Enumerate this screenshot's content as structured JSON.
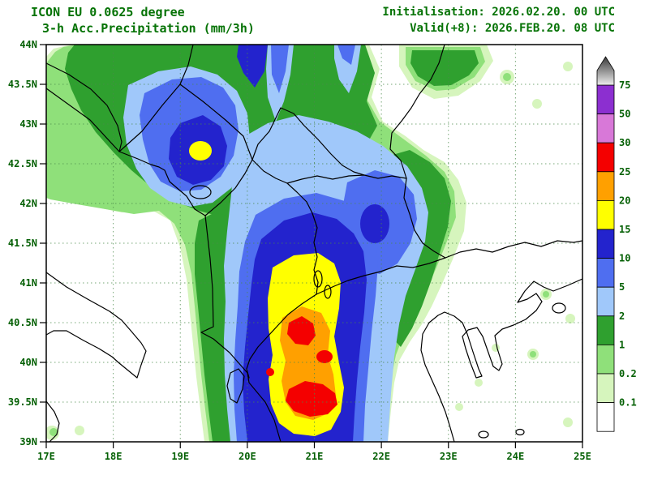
{
  "header": {
    "model_line": "ICON EU 0.0625 degree",
    "product_line": "3-h Acc.Precipitation (mm/3h)",
    "init_line": "Initialisation: 2026.02.20. 00 UTC",
    "valid_line": "Valid(+8): 2026.FEB.20. 08 UTC"
  },
  "map": {
    "lat_ticks": [
      "44N",
      "43.5N",
      "43N",
      "42.5N",
      "42N",
      "41.5N",
      "41N",
      "40.5N",
      "40N",
      "39.5N",
      "39N"
    ],
    "lon_ticks": [
      "17E",
      "18E",
      "19E",
      "20E",
      "21E",
      "22E",
      "23E",
      "24E",
      "25E"
    ]
  },
  "legend": {
    "labels": [
      "75",
      "50",
      "30",
      "25",
      "20",
      "15",
      "10",
      "5",
      "2",
      "1",
      "0.2",
      "0.1"
    ],
    "segment_colors": [
      "#8c2fd0",
      "#d878d8",
      "#f40000",
      "#ffa000",
      "#ffff00",
      "#2323cd",
      "#4f6ef0",
      "#a0c8fa",
      "#2fa02f",
      "#8fe07a",
      "#d6f5bd",
      "#ffffff"
    ],
    "arrow_gradient": [
      "#ececec",
      "#3a3a3a"
    ]
  },
  "precip_levels": {
    "0.1": "#d6f5bd",
    "0.2": "#8fe07a",
    "1": "#2fa02f",
    "2": "#a0c8fa",
    "5": "#4f6ef0",
    "10": "#2323cd",
    "15": "#ffff00",
    "20": "#ffa000",
    "25": "#f40000"
  },
  "colors": {
    "header_text": "#067306",
    "axis_text": "#056005",
    "graticule": "#4a8a4a",
    "coastline": "#000000",
    "frame": "#000000"
  },
  "chart_data": {
    "type": "heatmap",
    "title": "3-h Acc.Precipitation (mm/3h)",
    "model": "ICON EU 0.0625 degree",
    "initialisation": "2026.02.20. 00 UTC",
    "valid": "2026.FEB.20. 08 UTC",
    "lead_hours": 8,
    "unit": "mm/3h",
    "lon_range": [
      "17E",
      "25E"
    ],
    "lat_range": [
      "39N",
      "44N"
    ],
    "levels_mm": [
      0.1,
      0.2,
      1,
      2,
      5,
      10,
      15,
      20,
      25,
      30,
      50,
      75
    ],
    "max_core": "25-30 mm cores near 20.7-21.3E, 39.4-40.3N (southern Albania / NW Greece)",
    "secondary_core": "15-20 mm spot near 19.3E, 42.6N (Montenegro)"
  }
}
